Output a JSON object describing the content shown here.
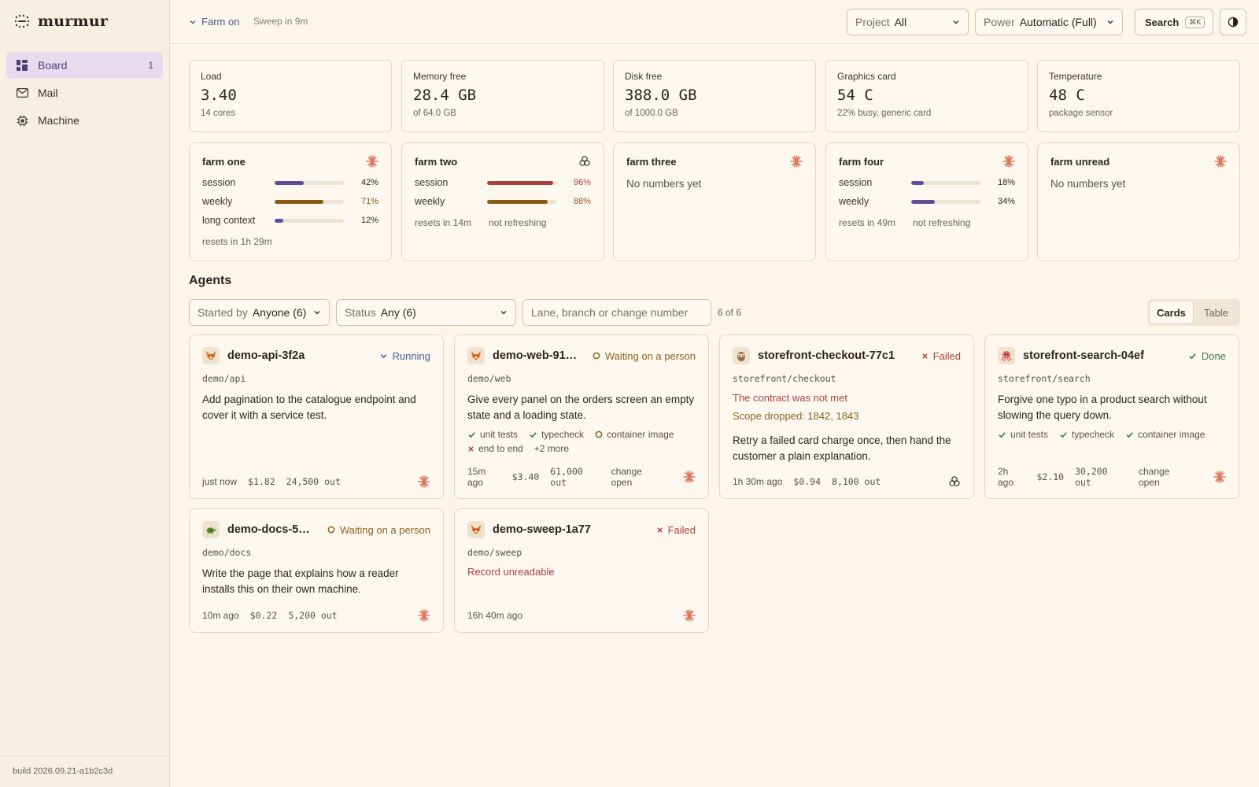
{
  "app": {
    "name": "murmur",
    "build": "build 2026.09.21-a1b2c3d"
  },
  "sidebar": {
    "items": [
      {
        "label": "Board",
        "count": "1",
        "icon": "grid-icon"
      },
      {
        "label": "Mail",
        "icon": "mail-icon"
      },
      {
        "label": "Machine",
        "icon": "chip-icon"
      }
    ]
  },
  "header": {
    "farm_toggle": "Farm on",
    "sweep": "Sweep in 9m",
    "project": {
      "label": "Project",
      "value": "All"
    },
    "power": {
      "label": "Power",
      "value": "Automatic (Full)"
    },
    "search": {
      "label": "Search",
      "shortcut": "⌘K"
    }
  },
  "stats": [
    {
      "label": "Load",
      "value": "3.40",
      "sub": "14 cores"
    },
    {
      "label": "Memory free",
      "value": "28.4 GB",
      "sub": "of 64.0 GB"
    },
    {
      "label": "Disk free",
      "value": "388.0 GB",
      "sub": "of 1000.0 GB"
    },
    {
      "label": "Graphics card",
      "value": "54 C",
      "sub": "22% busy, generic card"
    },
    {
      "label": "Temperature",
      "value": "48 C",
      "sub": "package sensor"
    }
  ],
  "farms": [
    {
      "name": "farm one",
      "icon": "sunburst-icon",
      "rows": [
        {
          "label": "session",
          "pct": "42%",
          "value": 0.42,
          "color": "#5b4f9a",
          "pct_color": "#2b2520"
        },
        {
          "label": "weekly",
          "pct": "71%",
          "value": 0.71,
          "color": "#8a5a12",
          "pct_color": "#8a5a12"
        },
        {
          "label": "long context",
          "pct": "12%",
          "value": 0.12,
          "color": "#5b4f9a",
          "pct_color": "#2b2520"
        }
      ],
      "resets": "resets in 1h 29m",
      "refresh": ""
    },
    {
      "name": "farm two",
      "icon": "knot-icon",
      "rows": [
        {
          "label": "session",
          "pct": "96%",
          "value": 0.96,
          "color": "#a8423f",
          "pct_color": "#a8423f"
        },
        {
          "label": "weekly",
          "pct": "88%",
          "value": 0.88,
          "color": "#8a5a12",
          "pct_color": "#8a5a12"
        }
      ],
      "resets": "resets in 14m",
      "refresh": "not refreshing"
    },
    {
      "name": "farm three",
      "icon": "sunburst-icon",
      "empty": "No numbers yet"
    },
    {
      "name": "farm four",
      "icon": "sunburst-icon",
      "rows": [
        {
          "label": "session",
          "pct": "18%",
          "value": 0.18,
          "color": "#5b4f9a",
          "pct_color": "#2b2520"
        },
        {
          "label": "weekly",
          "pct": "34%",
          "value": 0.34,
          "color": "#5b4f9a",
          "pct_color": "#2b2520"
        }
      ],
      "resets": "resets in 49m",
      "refresh": "not refreshing"
    },
    {
      "name": "farm unread",
      "icon": "sunburst-icon",
      "empty": "No numbers yet"
    }
  ],
  "agents": {
    "title": "Agents",
    "started_by": {
      "label": "Started by",
      "value": "Anyone (6)"
    },
    "status_filter": {
      "label": "Status",
      "value": "Any (6)"
    },
    "search_placeholder": "Lane, branch or change number",
    "count": "6 of 6",
    "view": {
      "cards": "Cards",
      "table": "Table"
    },
    "cards": [
      {
        "title": "demo-api-3f2a",
        "avatar": "fox-icon",
        "status": "Running",
        "status_icon": "chevron-down-icon",
        "status_color": "#4b5a9a",
        "path": "demo/api",
        "desc": "Add pagination to the catalogue endpoint and cover it with a service test.",
        "time": "just now",
        "cost": "$1.82",
        "tokens": "24,500 out",
        "change": "",
        "agent_icon": "sunburst-icon"
      },
      {
        "title": "demo-web-91…",
        "avatar": "fox-icon",
        "status": "Waiting on a person",
        "status_icon": "circle-icon",
        "status_color": "#8a6420",
        "path": "demo/web",
        "desc": "Give every panel on the orders screen an empty state and a loading state.",
        "checks": [
          {
            "label": "unit tests",
            "ok": true
          },
          {
            "label": "typecheck",
            "ok": true
          },
          {
            "label": "container image",
            "ok": "pending"
          },
          {
            "label": "end to end",
            "ok": false
          },
          {
            "label": "+2 more",
            "ok": "none"
          }
        ],
        "time": "15m ago",
        "cost": "$3.40",
        "tokens": "61,000 out",
        "change": "change open",
        "agent_icon": "sunburst-icon"
      },
      {
        "title": "storefront-checkout-77c1",
        "avatar": "owl-icon",
        "status": "Failed",
        "status_icon": "x-icon",
        "status_color": "#a8423f",
        "path": "storefront/checkout",
        "error": "The contract was not met",
        "warning": "Scope dropped: 1842, 1843",
        "desc": "Retry a failed card charge once, then hand the customer a plain explanation.",
        "time": "1h 30m ago",
        "cost": "$0.94",
        "tokens": "8,100 out",
        "change": "",
        "agent_icon": "knot-icon"
      },
      {
        "title": "storefront-search-04ef",
        "avatar": "octopus-icon",
        "status": "Done",
        "status_icon": "check-icon",
        "status_color": "#3f7a4a",
        "path": "storefront/search",
        "desc": "Forgive one typo in a product search without slowing the query down.",
        "checks": [
          {
            "label": "unit tests",
            "ok": true
          },
          {
            "label": "typecheck",
            "ok": true
          },
          {
            "label": "container image",
            "ok": true
          }
        ],
        "time": "2h ago",
        "cost": "$2.10",
        "tokens": "30,200 out",
        "change": "change open",
        "agent_icon": "sunburst-icon"
      },
      {
        "title": "demo-docs-5…",
        "avatar": "turtle-icon",
        "status": "Waiting on a person",
        "status_icon": "circle-icon",
        "status_color": "#8a6420",
        "path": "demo/docs",
        "desc": "Write the page that explains how a reader installs this on their own machine.",
        "time": "10m ago",
        "cost": "$0.22",
        "tokens": "5,200 out",
        "change": "",
        "agent_icon": "sunburst-icon"
      },
      {
        "title": "demo-sweep-1a77",
        "avatar": "fox-icon",
        "status": "Failed",
        "status_icon": "x-icon",
        "status_color": "#a8423f",
        "path": "demo/sweep",
        "error": "Record unreadable",
        "time": "16h 40m ago",
        "cost": "",
        "tokens": "",
        "change": "",
        "agent_icon": "sunburst-icon"
      }
    ]
  }
}
